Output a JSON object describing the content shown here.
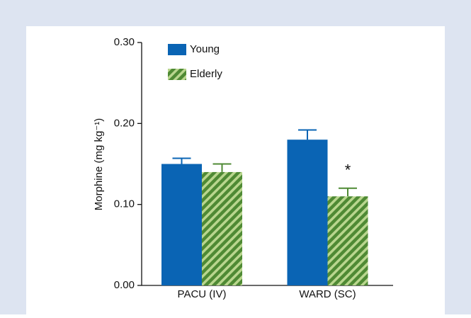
{
  "chart_data": {
    "type": "bar",
    "y_label": "Morphine (mg kg⁻¹)",
    "categories": [
      "PACU (IV)",
      "WARD (SC)"
    ],
    "series": [
      {
        "name": "Young",
        "color": "#0a64b4",
        "pattern": false,
        "values": [
          0.15,
          0.18
        ],
        "errors": [
          0.007,
          0.012
        ]
      },
      {
        "name": "Elderly",
        "color": "#4f8a34",
        "pattern": true,
        "values": [
          0.14,
          0.11
        ],
        "errors": [
          0.01,
          0.01
        ]
      }
    ],
    "annotation": "*",
    "ylim": [
      0,
      0.3
    ],
    "yticks": [
      {
        "value": 0,
        "label": "0.00"
      },
      {
        "value": 0.1,
        "label": "0.10"
      },
      {
        "value": 0.2,
        "label": "0.20"
      },
      {
        "value": 0.3,
        "label": "0.30"
      }
    ],
    "grid": false
  }
}
